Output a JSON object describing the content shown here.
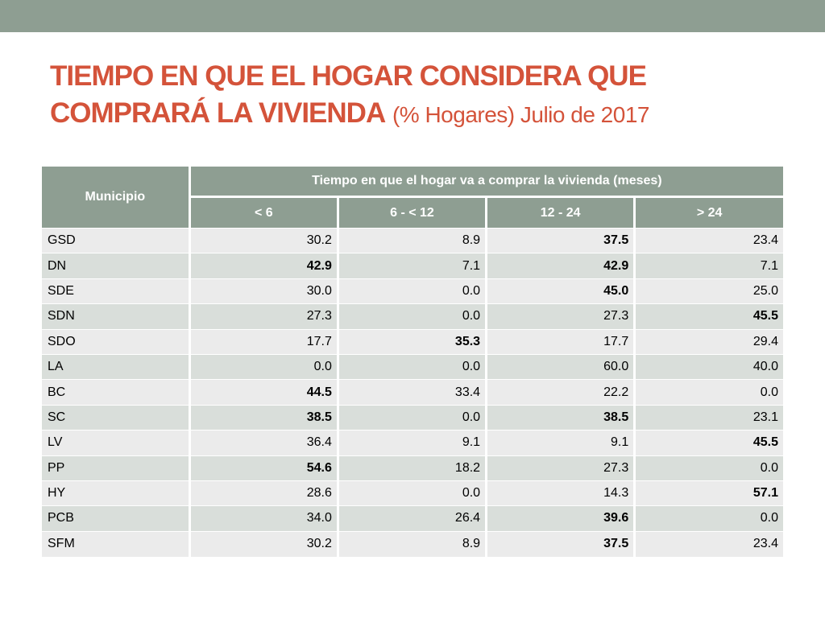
{
  "slide": {
    "title_main": "TIEMPO EN QUE EL HOGAR CONSIDERA QUE COMPRARÁ LA VIVIENDA",
    "title_sub": "(% Hogares) Julio de 2017"
  },
  "table": {
    "header_municipio": "Municipio",
    "header_group": "Tiempo en que el hogar va a comprar la vivienda (meses)",
    "columns": [
      "< 6",
      "6 - < 12",
      "12 - 24",
      "> 24"
    ],
    "rows": [
      {
        "municipio": "GSD",
        "values": [
          "30.2",
          "8.9",
          "37.5",
          "23.4"
        ],
        "bold": [
          false,
          false,
          true,
          false
        ]
      },
      {
        "municipio": "DN",
        "values": [
          "42.9",
          "7.1",
          "42.9",
          "7.1"
        ],
        "bold": [
          true,
          false,
          true,
          false
        ]
      },
      {
        "municipio": "SDE",
        "values": [
          "30.0",
          "0.0",
          "45.0",
          "25.0"
        ],
        "bold": [
          false,
          false,
          true,
          false
        ]
      },
      {
        "municipio": "SDN",
        "values": [
          "27.3",
          "0.0",
          "27.3",
          "45.5"
        ],
        "bold": [
          false,
          false,
          false,
          true
        ]
      },
      {
        "municipio": "SDO",
        "values": [
          "17.7",
          "35.3",
          "17.7",
          "29.4"
        ],
        "bold": [
          false,
          true,
          false,
          false
        ]
      },
      {
        "municipio": "LA",
        "values": [
          "0.0",
          "0.0",
          "60.0",
          "40.0"
        ],
        "bold": [
          false,
          false,
          false,
          false
        ]
      },
      {
        "municipio": "BC",
        "values": [
          "44.5",
          "33.4",
          "22.2",
          "0.0"
        ],
        "bold": [
          true,
          false,
          false,
          false
        ]
      },
      {
        "municipio": "SC",
        "values": [
          "38.5",
          "0.0",
          "38.5",
          "23.1"
        ],
        "bold": [
          true,
          false,
          true,
          false
        ]
      },
      {
        "municipio": "LV",
        "values": [
          "36.4",
          "9.1",
          "9.1",
          "45.5"
        ],
        "bold": [
          false,
          false,
          false,
          true
        ]
      },
      {
        "municipio": "PP",
        "values": [
          "54.6",
          "18.2",
          "27.3",
          "0.0"
        ],
        "bold": [
          true,
          false,
          false,
          false
        ]
      },
      {
        "municipio": "HY",
        "values": [
          "28.6",
          "0.0",
          "14.3",
          "57.1"
        ],
        "bold": [
          false,
          false,
          false,
          true
        ]
      },
      {
        "municipio": "PCB",
        "values": [
          "34.0",
          "26.4",
          "39.6",
          "0.0"
        ],
        "bold": [
          false,
          false,
          true,
          false
        ]
      },
      {
        "municipio": "SFM",
        "values": [
          "30.2",
          "8.9",
          "37.5",
          "23.4"
        ],
        "bold": [
          false,
          false,
          true,
          false
        ]
      }
    ]
  }
}
